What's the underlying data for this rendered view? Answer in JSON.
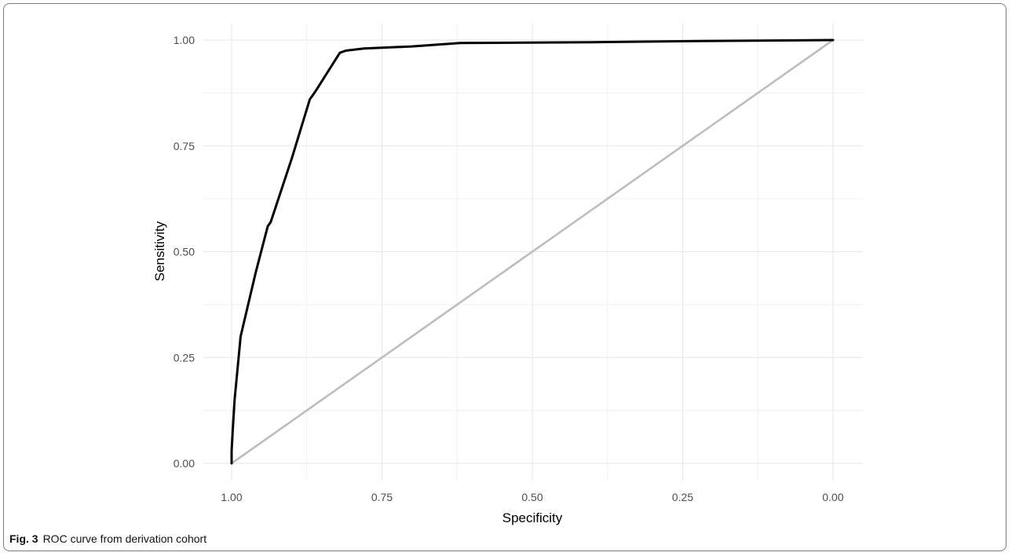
{
  "caption": {
    "label": "Fig. 3",
    "text": "ROC curve from derivation cohort"
  },
  "chart_data": {
    "type": "line",
    "title": "",
    "xlabel": "Specificity",
    "ylabel": "Sensitivity",
    "x_reversed": true,
    "xlim": [
      1.0,
      0.0
    ],
    "ylim": [
      0.0,
      1.0
    ],
    "x_ticks": [
      "1.00",
      "0.75",
      "0.50",
      "0.25",
      "0.00"
    ],
    "y_ticks": [
      "0.00",
      "0.25",
      "0.50",
      "0.75",
      "1.00"
    ],
    "grid": true,
    "legend": "none",
    "series": [
      {
        "color": "#000000",
        "points": [
          {
            "specificity": 1.0,
            "sensitivity": 0.0
          },
          {
            "specificity": 1.0,
            "sensitivity": 0.03
          },
          {
            "specificity": 0.998,
            "sensitivity": 0.08
          },
          {
            "specificity": 0.995,
            "sensitivity": 0.15
          },
          {
            "specificity": 0.985,
            "sensitivity": 0.3
          },
          {
            "specificity": 0.96,
            "sensitivity": 0.45
          },
          {
            "specificity": 0.94,
            "sensitivity": 0.56
          },
          {
            "specificity": 0.935,
            "sensitivity": 0.57
          },
          {
            "specificity": 0.9,
            "sensitivity": 0.72
          },
          {
            "specificity": 0.87,
            "sensitivity": 0.86
          },
          {
            "specificity": 0.86,
            "sensitivity": 0.88
          },
          {
            "specificity": 0.82,
            "sensitivity": 0.97
          },
          {
            "specificity": 0.81,
            "sensitivity": 0.975
          },
          {
            "specificity": 0.78,
            "sensitivity": 0.98
          },
          {
            "specificity": 0.7,
            "sensitivity": 0.985
          },
          {
            "specificity": 0.62,
            "sensitivity": 0.993
          },
          {
            "specificity": 0.4,
            "sensitivity": 0.995
          },
          {
            "specificity": 0.2,
            "sensitivity": 0.998
          },
          {
            "specificity": 0.0,
            "sensitivity": 1.0
          }
        ]
      },
      {
        "color": "#bdbdbd",
        "points": [
          {
            "specificity": 1.0,
            "sensitivity": 0.0
          },
          {
            "specificity": 0.0,
            "sensitivity": 1.0
          }
        ]
      }
    ]
  }
}
